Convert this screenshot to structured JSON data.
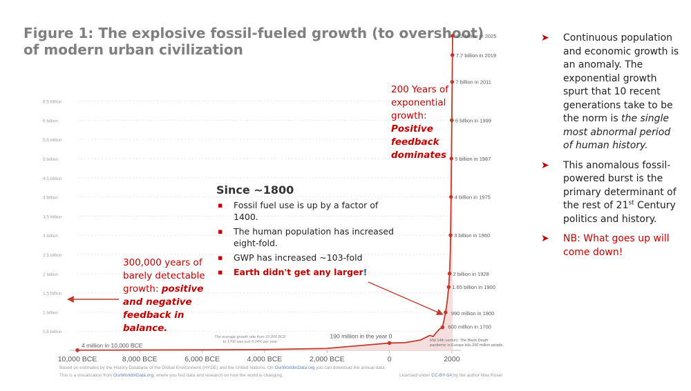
{
  "figure": {
    "title_line1": "Figure 1: The explosive fossil-fueled growth (to overshoot)",
    "title_line2": "of modern urban civilization"
  },
  "chart_data": {
    "type": "line",
    "title": "",
    "xlabel": "",
    "ylabel": "",
    "xlim": [
      -10000,
      2025
    ],
    "ylim": [
      0,
      8.2
    ],
    "x_ticks": [
      {
        "value": -10000,
        "label": "10,000 BCE"
      },
      {
        "value": -8000,
        "label": "8,000 BCE"
      },
      {
        "value": -6000,
        "label": "6,000 BCE"
      },
      {
        "value": -4000,
        "label": "4,000 BCE"
      },
      {
        "value": -2000,
        "label": "2,000 BCE"
      },
      {
        "value": 0,
        "label": "0"
      },
      {
        "value": 2000,
        "label": "2000"
      }
    ],
    "y_ticks": [
      {
        "value": 0.5,
        "label": "0.5 billion"
      },
      {
        "value": 1,
        "label": "1 billion"
      },
      {
        "value": 1.5,
        "label": "1.5 billion"
      },
      {
        "value": 2,
        "label": "2 billion"
      },
      {
        "value": 2.5,
        "label": "2.5 billion"
      },
      {
        "value": 3,
        "label": "3 billion"
      },
      {
        "value": 3.5,
        "label": "3.5 billion"
      },
      {
        "value": 4,
        "label": "4 billion"
      },
      {
        "value": 4.5,
        "label": "4.5 billion"
      },
      {
        "value": 5,
        "label": "5 billion"
      },
      {
        "value": 5.5,
        "label": "5.5 billion"
      },
      {
        "value": 6,
        "label": "6 billion"
      },
      {
        "value": 6.5,
        "label": "6.5 billion"
      }
    ],
    "grid": true,
    "series": [
      {
        "x": [
          -10000,
          -8000,
          -6000,
          -4000,
          -2000,
          0,
          500,
          1000,
          1300,
          1400,
          1500,
          1600,
          1700,
          1800,
          1850,
          1900,
          1928,
          1950,
          1960,
          1975,
          1987,
          1999,
          2011,
          2019,
          2025
        ],
        "y": [
          0.004,
          0.008,
          0.012,
          0.02,
          0.05,
          0.19,
          0.2,
          0.27,
          0.39,
          0.36,
          0.46,
          0.55,
          0.6,
          0.99,
          1.26,
          1.65,
          2.0,
          2.5,
          3.0,
          4.0,
          5.0,
          6.0,
          7.0,
          7.7,
          8.2
        ]
      }
    ],
    "point_labels": [
      {
        "x": -10000,
        "y": 0.004,
        "text": "4 million in 10,000 BCE",
        "side": "right"
      },
      {
        "x": 0,
        "y": 0.19,
        "text": "190 million in the year 0",
        "side": "above"
      },
      {
        "x": 1700,
        "y": 0.6,
        "text": "600 million in 1700",
        "side": "right"
      },
      {
        "x": 1800,
        "y": 0.99,
        "text": "990 million in 1800",
        "side": "right"
      },
      {
        "x": 1900,
        "y": 1.65,
        "text": "1.65 billion in 1900",
        "side": "right"
      },
      {
        "x": 1928,
        "y": 2.0,
        "text": "2 billion in 1928",
        "side": "right"
      },
      {
        "x": 1960,
        "y": 3.0,
        "text": "3 billion in 1960",
        "side": "right"
      },
      {
        "x": 1975,
        "y": 4.0,
        "text": "4 billion in 1975",
        "side": "right"
      },
      {
        "x": 1987,
        "y": 5.0,
        "text": "5 billion in 1987",
        "side": "right"
      },
      {
        "x": 1999,
        "y": 6.0,
        "text": "6 billion in 1999",
        "side": "right"
      },
      {
        "x": 2011,
        "y": 7.0,
        "text": "7 billion in 2011",
        "side": "right"
      },
      {
        "x": 2019,
        "y": 7.7,
        "text": "7.7 billion in 2019",
        "side": "right"
      },
      {
        "x": 2025,
        "y": 8.2,
        "text": "8.2 billion in 2025",
        "side": "right"
      }
    ],
    "notes": [
      {
        "id": "growth-rate",
        "lines": [
          "The average growth rate from 10,000 BCE",
          "to 1700 was just 0.04% per year"
        ]
      },
      {
        "id": "black-death",
        "lines": [
          "Mid 14th century: The Black Death",
          "pandemic in Europe kills 200 million people."
        ]
      }
    ],
    "line_color": "#c0392b"
  },
  "annotations": {
    "left": {
      "plain": "300,000 years of barely detectable growth:",
      "emph": "positive and negative feedback in balance."
    },
    "top": {
      "plain": "200 Years of exponential growth:",
      "emph": "Positive feedback dominates"
    }
  },
  "since_box": {
    "heading": "Since ~1800",
    "items": [
      "Fossil fuel use is up by a factor of 1400.",
      "The human population has increased eight-fold.",
      "GWP has increased ~103-fold"
    ],
    "last_red": "Earth didn't get any larger",
    "last_blue": "!"
  },
  "bullets": {
    "b1_text": "Continuous population and economic growth is an anomaly. The exponential growth spurt that 10 recent generations take to be the norm is ",
    "b1_em": "the single most abnormal period of human history.",
    "b2_pre": "This anomalous fossil-powered burst is the primary determinant of the rest of 21",
    "b2_sup": "st",
    "b2_post": " Century politics and history.",
    "b3": "NB: What goes up will come down!"
  },
  "footer": {
    "line1_pre": "Based on estimates by the History Database of the Global Environment (HYDE) and the United Nations. On ",
    "line1_link": "OurWorldInData.org",
    "line1_post": " you can download the annual data.",
    "line2_pre": "This is a visualization from ",
    "line2_link": "OurWorldInData.org",
    "line2_post": ", where you find data and research on how the world is changing.",
    "license_pre": "Licensed under ",
    "license_link": "CC-BY-SA",
    "license_post": " by the author Max Roser"
  },
  "colors": {
    "accent_red": "#c00000",
    "title_gray": "#7f7f7f",
    "axis_text": "#9a9a9a"
  }
}
